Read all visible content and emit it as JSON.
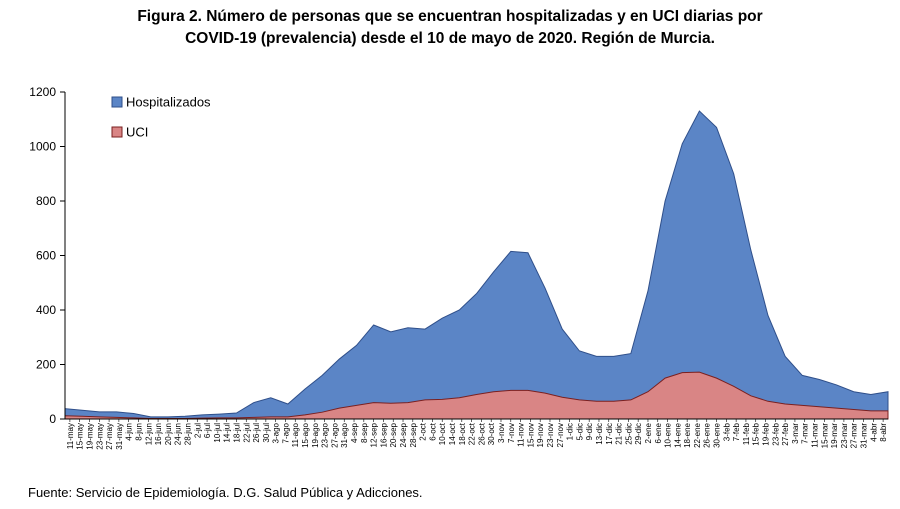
{
  "title_line1": "Figura 2. Número de personas que se encuentran hospitalizadas y en UCI diarias por",
  "title_line2": "COVID-19 (prevalencia) desde el 10 de mayo de 2020. Región de Murcia.",
  "source": "Fuente: Servicio de Epidemiología. D.G. Salud Pública y Adicciones.",
  "colors": {
    "hospitalizados_fill": "#5b85c6",
    "hospitalizados_stroke": "#2f4f8a",
    "uci_fill": "#d98585",
    "uci_stroke": "#7a2020"
  },
  "chart_data": {
    "type": "area",
    "title": "",
    "xlabel": "",
    "ylabel": "",
    "ylim": [
      0,
      1200
    ],
    "yticks": [
      0,
      200,
      400,
      600,
      800,
      1000,
      1200
    ],
    "grid": false,
    "legend_position": "top-left",
    "xtick_labels": [
      "11-may",
      "15-may",
      "19-may",
      "23-may",
      "27-may",
      "31-may",
      "4-jun",
      "8-jun",
      "12-jun",
      "16-jun",
      "20-jun",
      "24-jun",
      "28-jun",
      "2-jul",
      "6-jul",
      "10-jul",
      "14-jul",
      "18-jul",
      "22-jul",
      "26-jul",
      "30-jul",
      "3-ago",
      "7-ago",
      "11-ago",
      "15-ago",
      "19-ago",
      "23-ago",
      "27-ago",
      "31-ago",
      "4-sep",
      "8-sep",
      "12-sep",
      "16-sep",
      "20-sep",
      "24-sep",
      "28-sep",
      "2-oct",
      "6-oct",
      "10-oct",
      "14-oct",
      "18-oct",
      "22-oct",
      "26-oct",
      "30-oct",
      "3-nov",
      "7-nov",
      "11-nov",
      "15-nov",
      "19-nov",
      "23-nov",
      "27-nov",
      "1-dic",
      "5-dic",
      "9-dic",
      "13-dic",
      "17-dic",
      "21-dic",
      "25-dic",
      "29-dic",
      "2-ene",
      "6-ene",
      "10-ene",
      "14-ene",
      "18-ene",
      "22-ene",
      "26-ene",
      "30-ene",
      "3-feb",
      "7-feb",
      "11-feb",
      "15-feb",
      "19-feb",
      "23-feb",
      "27-feb",
      "3-mar",
      "7-mar",
      "11-mar",
      "15-mar",
      "19-mar",
      "23-mar",
      "27-mar",
      "31-mar",
      "4-abr",
      "8-abr"
    ],
    "x": [
      "10-may",
      "17-may",
      "24-may",
      "31-may",
      "7-jun",
      "14-jun",
      "21-jun",
      "28-jun",
      "5-jul",
      "12-jul",
      "19-jul",
      "26-jul",
      "2-ago",
      "9-ago",
      "16-ago",
      "23-ago",
      "30-ago",
      "6-sep",
      "13-sep",
      "20-sep",
      "27-sep",
      "4-oct",
      "11-oct",
      "18-oct",
      "25-oct",
      "1-nov",
      "8-nov",
      "15-nov",
      "22-nov",
      "29-nov",
      "6-dic",
      "13-dic",
      "20-dic",
      "27-dic",
      "3-ene",
      "10-ene",
      "17-ene",
      "24-ene",
      "31-ene",
      "7-feb",
      "14-feb",
      "21-feb",
      "28-feb",
      "7-mar",
      "14-mar",
      "21-mar",
      "28-mar",
      "4-abr",
      "8-abr"
    ],
    "series": [
      {
        "name": "Hospitalizados",
        "values": [
          38,
          32,
          26,
          26,
          20,
          8,
          8,
          10,
          15,
          18,
          22,
          60,
          78,
          55,
          110,
          160,
          220,
          270,
          345,
          320,
          335,
          330,
          370,
          400,
          460,
          540,
          615,
          610,
          480,
          330,
          250,
          230,
          230,
          240,
          470,
          800,
          1010,
          1130,
          1070,
          900,
          620,
          380,
          230,
          160,
          145,
          125,
          100,
          90,
          100
        ]
      },
      {
        "name": "UCI",
        "values": [
          12,
          10,
          8,
          6,
          4,
          2,
          2,
          2,
          3,
          4,
          4,
          6,
          8,
          8,
          15,
          25,
          40,
          50,
          60,
          58,
          60,
          70,
          72,
          78,
          90,
          100,
          105,
          105,
          95,
          80,
          70,
          65,
          65,
          70,
          100,
          150,
          170,
          172,
          150,
          120,
          85,
          65,
          55,
          50,
          45,
          40,
          35,
          30,
          30
        ]
      }
    ]
  }
}
